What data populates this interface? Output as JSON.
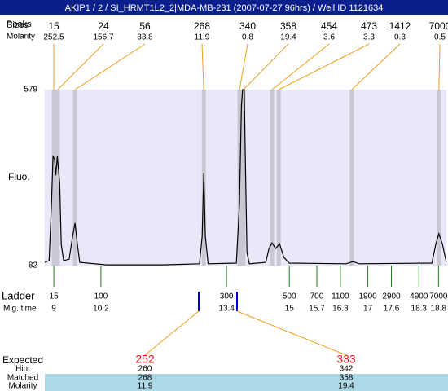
{
  "header": {
    "title": "AKIP1 / 2 / SI_HRMT1L2_2|MDA-MB-231 (2007-07-27 96hrs) / Well ID 1121634"
  },
  "chart_data": {
    "type": "line",
    "y_label": "Fluo.",
    "ylim": [
      82,
      579
    ],
    "yticks": [
      82,
      579
    ],
    "xlim": [
      8.77,
      19.0
    ],
    "peaks_label": "Peaks",
    "sizes_label": "Sizes",
    "molarity_label": "Molarity",
    "peaks": {
      "sizes": [
        15,
        24,
        56,
        268,
        340,
        358,
        454,
        473,
        1412,
        7000
      ],
      "molarity": [
        252.5,
        156.7,
        33.8,
        11.9,
        0.8,
        19.4,
        3.6,
        3.3,
        0.3,
        0.5
      ],
      "time": [
        9.0,
        9.1,
        9.54,
        12.82,
        13.73,
        13.83,
        14.56,
        14.73,
        16.59,
        18.81
      ]
    },
    "trace": {
      "color": "#000000",
      "x": [
        8.77,
        8.88,
        8.94,
        8.98,
        9.02,
        9.05,
        9.09,
        9.15,
        9.19,
        9.25,
        9.39,
        9.48,
        9.54,
        9.6,
        9.66,
        10.33,
        11.78,
        12.71,
        12.78,
        12.82,
        12.86,
        12.93,
        13.65,
        13.73,
        13.78,
        13.81,
        13.85,
        13.88,
        13.92,
        13.98,
        14.4,
        14.48,
        14.56,
        14.65,
        14.75,
        14.86,
        15.0,
        16.45,
        16.62,
        16.78,
        18.63,
        18.73,
        18.81,
        18.9,
        19.0
      ],
      "values": [
        91,
        96,
        257,
        390,
        383,
        337,
        390,
        314,
        142,
        96,
        100,
        165,
        202,
        142,
        91,
        84,
        84,
        87,
        165,
        344,
        165,
        87,
        89,
        257,
        533,
        579,
        579,
        372,
        119,
        87,
        91,
        130,
        146,
        130,
        144,
        105,
        89,
        87,
        93,
        87,
        89,
        142,
        172,
        142,
        91
      ]
    },
    "ladder": {
      "label": "Ladder",
      "time_label": "Mig. time",
      "sizes": [
        15,
        100,
        300,
        500,
        700,
        1100,
        1900,
        2900,
        4900,
        7000
      ],
      "time": [
        9,
        10.2,
        13.4,
        15,
        15.7,
        16.3,
        17,
        17.6,
        18.3,
        18.8
      ]
    }
  },
  "expected": {
    "label": "Expected",
    "row_labels": [
      "Hint",
      "Matched",
      "Molarity"
    ],
    "columns": [
      {
        "expected": 252,
        "hint": 260,
        "matched": 268,
        "molarity": 11.9
      },
      {
        "expected": 333,
        "hint": 342,
        "matched": 358,
        "molarity": 19.4
      }
    ]
  }
}
